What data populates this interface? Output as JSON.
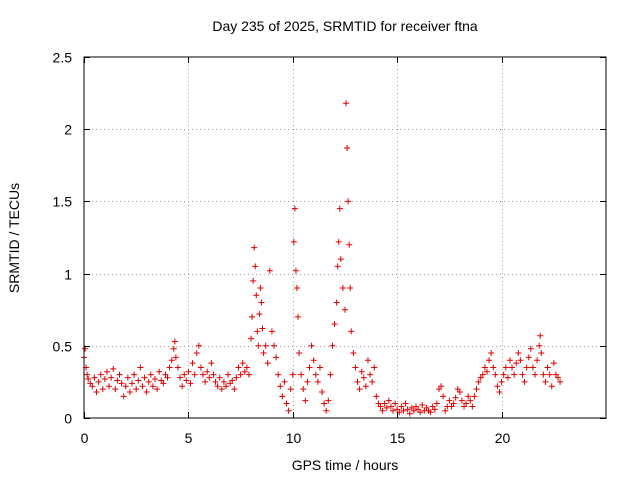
{
  "chart_data": {
    "type": "scatter",
    "title": "Day 235 of 2025, SRMTID for receiver ftna",
    "xlabel": "GPS time / hours",
    "ylabel": "SRMTID / TECUs",
    "xlim": [
      0,
      25
    ],
    "ylim": [
      0,
      2.5
    ],
    "xticks": [
      0,
      5,
      10,
      15,
      20
    ],
    "yticks": [
      0,
      0.5,
      1,
      1.5,
      2,
      2.5
    ],
    "xtick_labels": [
      "0",
      "5",
      "10",
      "15",
      "20"
    ],
    "ytick_labels": [
      "0",
      "0.5",
      "1",
      "1.5",
      "2",
      "2.5"
    ],
    "grid": true,
    "marker": "plus",
    "color": "#e00000",
    "series": [
      {
        "name": "SRMTID",
        "points": [
          [
            0.0,
            0.42
          ],
          [
            0.05,
            0.48
          ],
          [
            0.1,
            0.35
          ],
          [
            0.15,
            0.3
          ],
          [
            0.2,
            0.27
          ],
          [
            0.3,
            0.24
          ],
          [
            0.4,
            0.22
          ],
          [
            0.5,
            0.28
          ],
          [
            0.6,
            0.18
          ],
          [
            0.7,
            0.25
          ],
          [
            0.8,
            0.3
          ],
          [
            0.9,
            0.2
          ],
          [
            1.0,
            0.27
          ],
          [
            1.1,
            0.32
          ],
          [
            1.2,
            0.22
          ],
          [
            1.3,
            0.28
          ],
          [
            1.4,
            0.34
          ],
          [
            1.5,
            0.2
          ],
          [
            1.6,
            0.26
          ],
          [
            1.7,
            0.3
          ],
          [
            1.8,
            0.24
          ],
          [
            1.9,
            0.15
          ],
          [
            2.0,
            0.22
          ],
          [
            2.1,
            0.28
          ],
          [
            2.2,
            0.18
          ],
          [
            2.3,
            0.24
          ],
          [
            2.4,
            0.3
          ],
          [
            2.5,
            0.2
          ],
          [
            2.6,
            0.26
          ],
          [
            2.7,
            0.35
          ],
          [
            2.8,
            0.22
          ],
          [
            2.9,
            0.28
          ],
          [
            3.0,
            0.18
          ],
          [
            3.1,
            0.25
          ],
          [
            3.2,
            0.3
          ],
          [
            3.3,
            0.22
          ],
          [
            3.4,
            0.27
          ],
          [
            3.5,
            0.2
          ],
          [
            3.6,
            0.32
          ],
          [
            3.7,
            0.26
          ],
          [
            3.8,
            0.24
          ],
          [
            3.9,
            0.3
          ],
          [
            4.0,
            0.28
          ],
          [
            4.1,
            0.35
          ],
          [
            4.2,
            0.4
          ],
          [
            4.3,
            0.48
          ],
          [
            4.35,
            0.53
          ],
          [
            4.4,
            0.42
          ],
          [
            4.5,
            0.35
          ],
          [
            4.6,
            0.28
          ],
          [
            4.7,
            0.22
          ],
          [
            4.8,
            0.3
          ],
          [
            4.9,
            0.26
          ],
          [
            5.0,
            0.32
          ],
          [
            5.1,
            0.24
          ],
          [
            5.2,
            0.38
          ],
          [
            5.3,
            0.3
          ],
          [
            5.4,
            0.45
          ],
          [
            5.5,
            0.5
          ],
          [
            5.6,
            0.35
          ],
          [
            5.7,
            0.3
          ],
          [
            5.8,
            0.25
          ],
          [
            5.9,
            0.32
          ],
          [
            6.0,
            0.28
          ],
          [
            6.1,
            0.38
          ],
          [
            6.2,
            0.3
          ],
          [
            6.3,
            0.25
          ],
          [
            6.4,
            0.22
          ],
          [
            6.5,
            0.28
          ],
          [
            6.6,
            0.2
          ],
          [
            6.7,
            0.25
          ],
          [
            6.8,
            0.22
          ],
          [
            6.9,
            0.3
          ],
          [
            7.0,
            0.24
          ],
          [
            7.1,
            0.26
          ],
          [
            7.2,
            0.2
          ],
          [
            7.3,
            0.28
          ],
          [
            7.4,
            0.35
          ],
          [
            7.5,
            0.3
          ],
          [
            7.6,
            0.38
          ],
          [
            7.7,
            0.32
          ],
          [
            7.8,
            0.35
          ],
          [
            7.9,
            0.3
          ],
          [
            8.0,
            0.55
          ],
          [
            8.05,
            0.7
          ],
          [
            8.1,
            0.95
          ],
          [
            8.15,
            1.18
          ],
          [
            8.2,
            1.05
          ],
          [
            8.25,
            0.85
          ],
          [
            8.3,
            0.6
          ],
          [
            8.35,
            0.5
          ],
          [
            8.4,
            0.72
          ],
          [
            8.45,
            0.9
          ],
          [
            8.5,
            0.8
          ],
          [
            8.55,
            0.62
          ],
          [
            8.6,
            0.45
          ],
          [
            8.7,
            0.5
          ],
          [
            8.8,
            0.38
          ],
          [
            8.9,
            1.02
          ],
          [
            9.0,
            0.6
          ],
          [
            9.1,
            0.5
          ],
          [
            9.2,
            0.42
          ],
          [
            9.3,
            0.3
          ],
          [
            9.4,
            0.22
          ],
          [
            9.5,
            0.15
          ],
          [
            9.6,
            0.25
          ],
          [
            9.7,
            0.1
          ],
          [
            9.8,
            0.05
          ],
          [
            9.9,
            0.2
          ],
          [
            10.0,
            0.3
          ],
          [
            10.05,
            1.22
          ],
          [
            10.1,
            1.45
          ],
          [
            10.15,
            1.02
          ],
          [
            10.2,
            0.9
          ],
          [
            10.25,
            0.7
          ],
          [
            10.3,
            0.45
          ],
          [
            10.4,
            0.3
          ],
          [
            10.5,
            0.2
          ],
          [
            10.6,
            0.12
          ],
          [
            10.7,
            0.25
          ],
          [
            10.8,
            0.35
          ],
          [
            10.9,
            0.5
          ],
          [
            11.0,
            0.4
          ],
          [
            11.1,
            0.3
          ],
          [
            11.2,
            0.25
          ],
          [
            11.3,
            0.35
          ],
          [
            11.4,
            0.18
          ],
          [
            11.5,
            0.1
          ],
          [
            11.6,
            0.05
          ],
          [
            11.7,
            0.12
          ],
          [
            11.8,
            0.3
          ],
          [
            11.9,
            0.5
          ],
          [
            12.0,
            0.65
          ],
          [
            12.1,
            0.8
          ],
          [
            12.15,
            1.05
          ],
          [
            12.2,
            1.22
          ],
          [
            12.25,
            1.45
          ],
          [
            12.3,
            1.1
          ],
          [
            12.4,
            0.9
          ],
          [
            12.5,
            0.75
          ],
          [
            12.55,
            2.18
          ],
          [
            12.6,
            1.87
          ],
          [
            12.65,
            1.5
          ],
          [
            12.7,
            1.2
          ],
          [
            12.75,
            0.9
          ],
          [
            12.8,
            0.6
          ],
          [
            12.9,
            0.45
          ],
          [
            13.0,
            0.35
          ],
          [
            13.1,
            0.25
          ],
          [
            13.2,
            0.2
          ],
          [
            13.3,
            0.32
          ],
          [
            13.4,
            0.28
          ],
          [
            13.5,
            0.22
          ],
          [
            13.6,
            0.4
          ],
          [
            13.7,
            0.3
          ],
          [
            13.8,
            0.25
          ],
          [
            13.9,
            0.35
          ],
          [
            14.0,
            0.15
          ],
          [
            14.1,
            0.1
          ],
          [
            14.2,
            0.08
          ],
          [
            14.3,
            0.05
          ],
          [
            14.4,
            0.1
          ],
          [
            14.5,
            0.07
          ],
          [
            14.6,
            0.12
          ],
          [
            14.7,
            0.08
          ],
          [
            14.8,
            0.05
          ],
          [
            14.9,
            0.1
          ],
          [
            15.0,
            0.06
          ],
          [
            15.1,
            0.04
          ],
          [
            15.2,
            0.08
          ],
          [
            15.3,
            0.05
          ],
          [
            15.4,
            0.1
          ],
          [
            15.5,
            0.06
          ],
          [
            15.6,
            0.03
          ],
          [
            15.7,
            0.07
          ],
          [
            15.8,
            0.05
          ],
          [
            15.9,
            0.08
          ],
          [
            16.0,
            0.06
          ],
          [
            16.1,
            0.04
          ],
          [
            16.2,
            0.09
          ],
          [
            16.3,
            0.05
          ],
          [
            16.4,
            0.07
          ],
          [
            16.5,
            0.05
          ],
          [
            16.6,
            0.04
          ],
          [
            16.7,
            0.08
          ],
          [
            16.8,
            0.06
          ],
          [
            16.9,
            0.1
          ],
          [
            17.0,
            0.2
          ],
          [
            17.1,
            0.22
          ],
          [
            17.2,
            0.15
          ],
          [
            17.3,
            0.05
          ],
          [
            17.4,
            0.08
          ],
          [
            17.5,
            0.12
          ],
          [
            17.6,
            0.08
          ],
          [
            17.7,
            0.1
          ],
          [
            17.8,
            0.14
          ],
          [
            17.9,
            0.2
          ],
          [
            18.0,
            0.18
          ],
          [
            18.1,
            0.12
          ],
          [
            18.2,
            0.08
          ],
          [
            18.3,
            0.1
          ],
          [
            18.4,
            0.15
          ],
          [
            18.5,
            0.12
          ],
          [
            18.6,
            0.08
          ],
          [
            18.7,
            0.15
          ],
          [
            18.8,
            0.2
          ],
          [
            18.9,
            0.25
          ],
          [
            19.0,
            0.28
          ],
          [
            19.1,
            0.3
          ],
          [
            19.2,
            0.35
          ],
          [
            19.3,
            0.32
          ],
          [
            19.4,
            0.4
          ],
          [
            19.5,
            0.45
          ],
          [
            19.6,
            0.35
          ],
          [
            19.7,
            0.3
          ],
          [
            19.8,
            0.22
          ],
          [
            19.9,
            0.18
          ],
          [
            20.0,
            0.25
          ],
          [
            20.1,
            0.3
          ],
          [
            20.2,
            0.35
          ],
          [
            20.3,
            0.28
          ],
          [
            20.4,
            0.4
          ],
          [
            20.5,
            0.35
          ],
          [
            20.6,
            0.3
          ],
          [
            20.7,
            0.38
          ],
          [
            20.8,
            0.45
          ],
          [
            20.9,
            0.4
          ],
          [
            21.0,
            0.3
          ],
          [
            21.1,
            0.25
          ],
          [
            21.2,
            0.35
          ],
          [
            21.3,
            0.42
          ],
          [
            21.4,
            0.48
          ],
          [
            21.5,
            0.35
          ],
          [
            21.6,
            0.3
          ],
          [
            21.7,
            0.4
          ],
          [
            21.8,
            0.5
          ],
          [
            21.85,
            0.57
          ],
          [
            21.9,
            0.45
          ],
          [
            22.0,
            0.3
          ],
          [
            22.1,
            0.25
          ],
          [
            22.2,
            0.35
          ],
          [
            22.3,
            0.3
          ],
          [
            22.4,
            0.22
          ],
          [
            22.5,
            0.38
          ],
          [
            22.6,
            0.3
          ],
          [
            22.7,
            0.28
          ],
          [
            22.8,
            0.25
          ]
        ]
      }
    ]
  }
}
